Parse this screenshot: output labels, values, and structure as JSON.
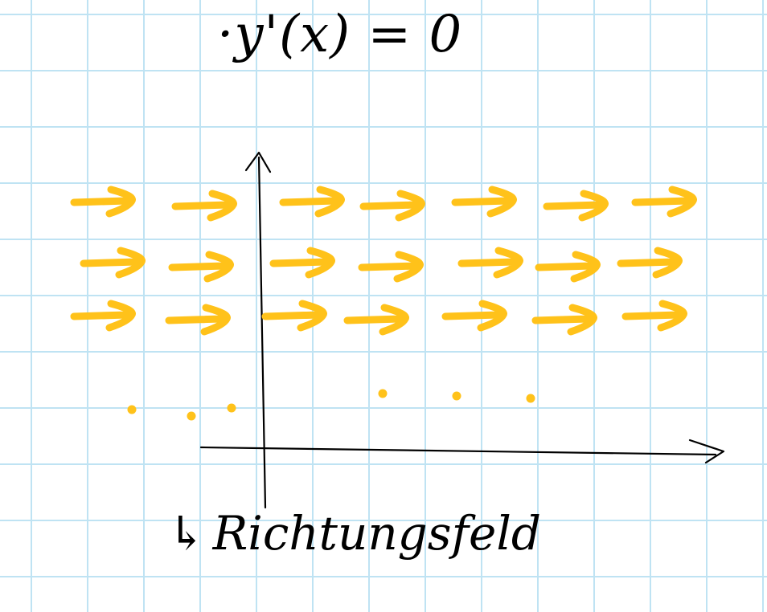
{
  "equation": "·y'(x) = 0",
  "caption": {
    "marker": "↳",
    "text": "Richtungsfeld"
  },
  "colors": {
    "grid": "#bfe3f3",
    "ink": "#000000",
    "arrows": "#ffc21a"
  },
  "field": {
    "rows": 3,
    "arrows_per_row": 7,
    "slope": 0,
    "continuation_dots": 6
  }
}
